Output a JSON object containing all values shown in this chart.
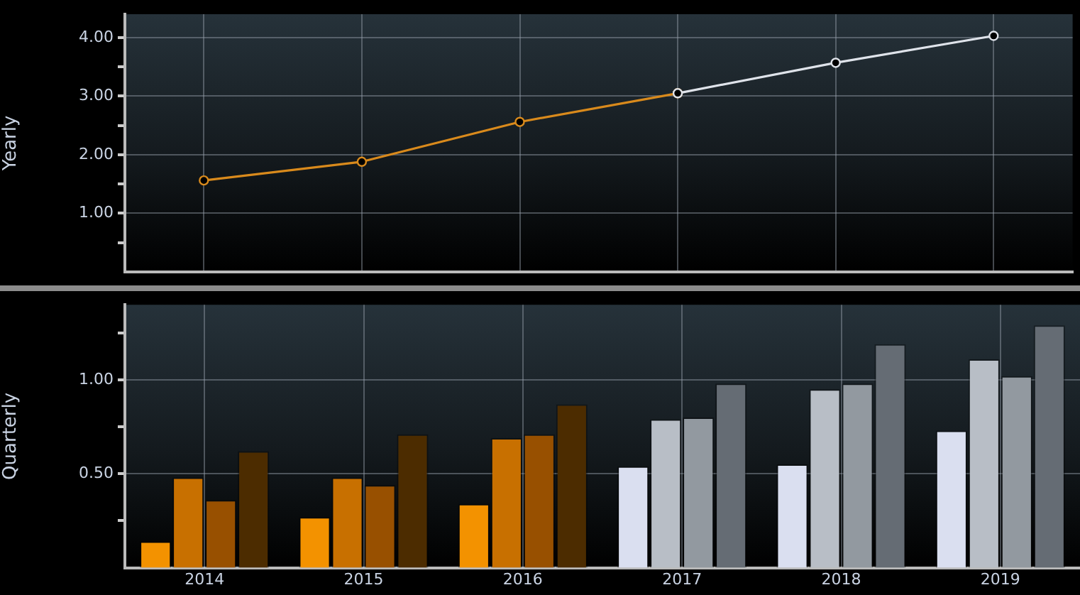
{
  "chart_data": [
    {
      "type": "line",
      "ylabel": "Yearly",
      "categories": [
        "2014",
        "2015",
        "2016",
        "2017",
        "2018",
        "2019"
      ],
      "series": [
        {
          "color": "#d98a1c",
          "values": [
            1.56,
            1.88,
            2.56,
            3.05,
            null,
            null
          ]
        },
        {
          "color": "#dfe3ea",
          "values": [
            null,
            null,
            null,
            3.05,
            3.57,
            4.03
          ]
        }
      ],
      "ylim": [
        0,
        4.4
      ],
      "yticks": [
        {
          "value": 0.5,
          "label": null
        },
        {
          "value": 1,
          "label": "1.00"
        },
        {
          "value": 1.5,
          "label": null
        },
        {
          "value": 2,
          "label": "2.00"
        },
        {
          "value": 2.5,
          "label": null
        },
        {
          "value": 3,
          "label": "3.00"
        },
        {
          "value": 3.5,
          "label": null
        },
        {
          "value": 4,
          "label": "4.00"
        }
      ],
      "grid": true,
      "legend": false,
      "marker": "circle",
      "tick_labels": "y"
    },
    {
      "type": "bar",
      "ylabel": "Quarterly",
      "categories": [
        "2014",
        "2015",
        "2016",
        "2017",
        "2018",
        "2019"
      ],
      "series": [
        {
          "colors": [
            "#f39200",
            "#f39200",
            "#f39200",
            "#dadff0",
            "#dadff0",
            "#dadff0"
          ],
          "values": [
            0.14,
            0.27,
            0.34,
            0.54,
            0.55,
            0.73
          ]
        },
        {
          "colors": [
            "#c87000",
            "#c87000",
            "#c87000",
            "#b8bec6",
            "#b8bec6",
            "#b8bec6"
          ],
          "values": [
            0.48,
            0.48,
            0.69,
            0.79,
            0.95,
            1.11
          ]
        },
        {
          "colors": [
            "#985000",
            "#985000",
            "#985000",
            "#9299a0",
            "#9299a0",
            "#9299a0"
          ],
          "values": [
            0.36,
            0.44,
            0.71,
            0.8,
            0.98,
            1.02
          ]
        },
        {
          "colors": [
            "#4c2c00",
            "#4c2c00",
            "#4c2c00",
            "#656c74",
            "#656c74",
            "#656c74"
          ],
          "values": [
            0.62,
            0.71,
            0.87,
            0.98,
            1.19,
            1.29
          ]
        }
      ],
      "ylim": [
        0,
        1.4
      ],
      "yticks": [
        {
          "value": 0.25,
          "label": null
        },
        {
          "value": 0.5,
          "label": "0.50"
        },
        {
          "value": 0.75,
          "label": null
        },
        {
          "value": 1,
          "label": "1.00"
        },
        {
          "value": 1.25,
          "label": null
        }
      ],
      "grid": true,
      "legend": false
    }
  ]
}
